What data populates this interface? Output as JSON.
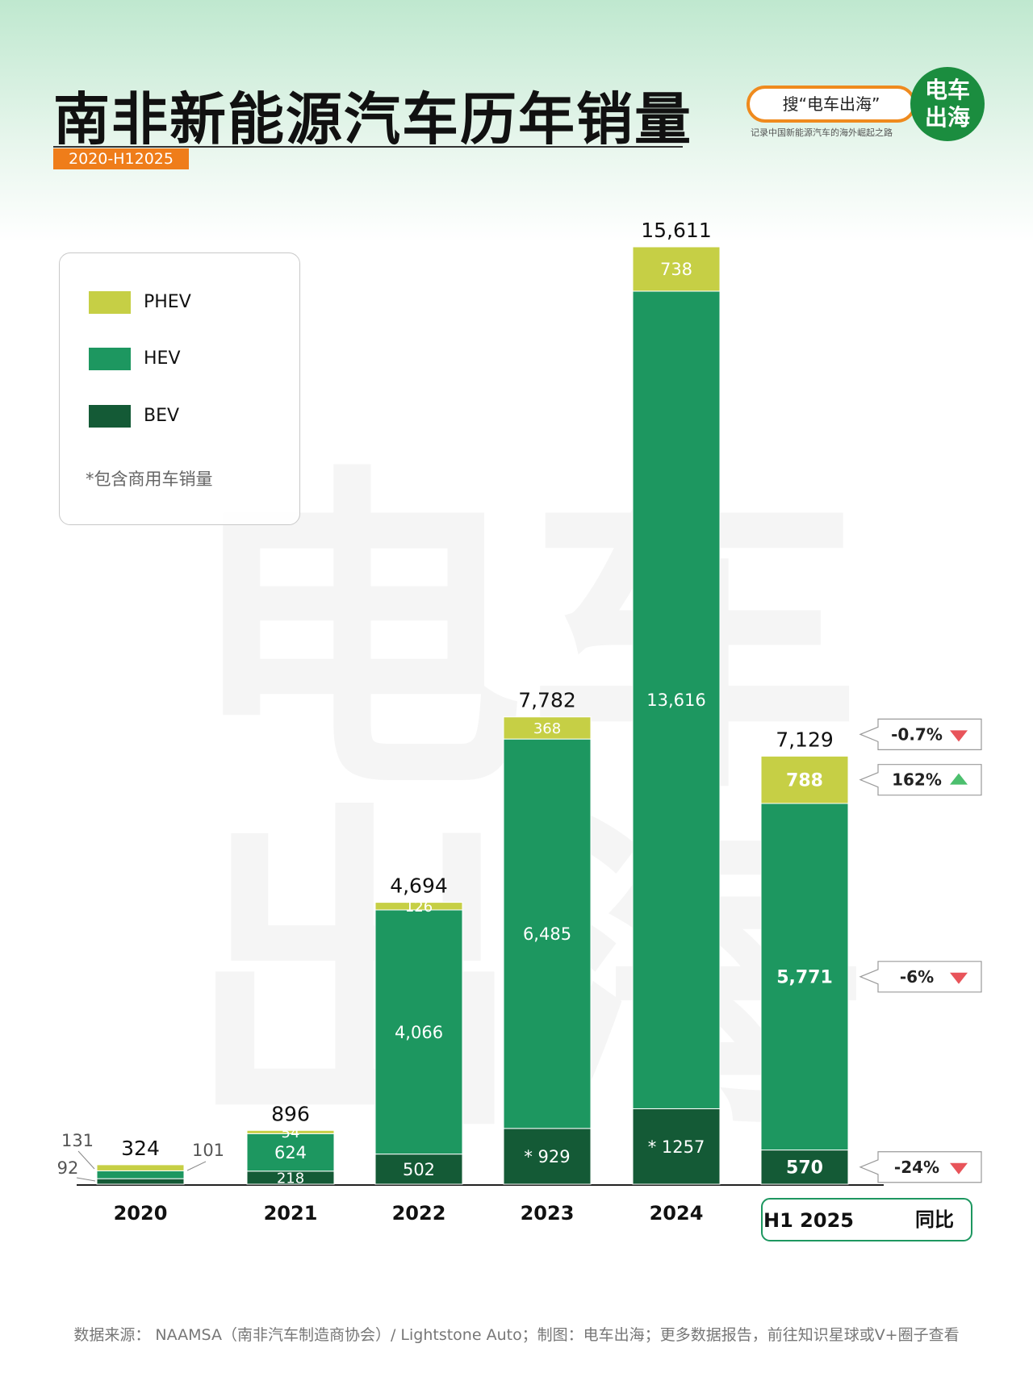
{
  "header": {
    "title": "南非新能源汽车历年销量",
    "subtitle": "2020-H12025",
    "brand_search": "搜“电车出海”",
    "brand_logo_line1": "电车",
    "brand_logo_line2": "出海",
    "brand_slogan": "记录中国新能源汽车的海外崛起之路"
  },
  "legend": {
    "items": [
      {
        "label": "PHEV",
        "color": "#c6cf45"
      },
      {
        "label": "HEV",
        "color": "#1d9760"
      },
      {
        "label": "BEV",
        "color": "#145a36"
      }
    ],
    "note": "*包含商用车销量"
  },
  "footer": {
    "source": "数据来源： NAAMSA（南非汽车制造商协会）/ Lightstone Auto；制图：电车出海；更多数据报告，前往知识星球或V+圈子查看"
  },
  "chart_data": {
    "type": "bar",
    "stacked": true,
    "categories": [
      "2020",
      "2021",
      "2022",
      "2023",
      "2024",
      "H1 2025"
    ],
    "series": [
      {
        "name": "BEV",
        "color": "#145a36",
        "values": [
          92,
          218,
          502,
          929,
          1257,
          570
        ],
        "labels": [
          "92",
          "218",
          "502",
          "* 929",
          "* 1257",
          "570"
        ]
      },
      {
        "name": "HEV",
        "color": "#1d9760",
        "values": [
          131,
          624,
          4066,
          6485,
          13616,
          5771
        ],
        "labels": [
          "131",
          "624",
          "4,066",
          "6,485",
          "13,616",
          "5,771"
        ]
      },
      {
        "name": "PHEV",
        "color": "#c6cf45",
        "values": [
          101,
          54,
          126,
          368,
          738,
          788
        ],
        "labels": [
          "101",
          "54",
          "126",
          "368",
          "738",
          "788"
        ]
      }
    ],
    "totals": [
      324,
      896,
      4694,
      7782,
      15611,
      7129
    ],
    "total_labels": [
      "324",
      "896",
      "4,694",
      "7,782",
      "15,611",
      "7,129"
    ],
    "ylim": [
      0,
      15611
    ],
    "yoy_header": "同比",
    "yoy_changes": [
      {
        "series": "Total",
        "value": "-0.7%",
        "direction": "down"
      },
      {
        "series": "PHEV",
        "value": "162%",
        "direction": "up"
      },
      {
        "series": "HEV",
        "value": "-6%",
        "direction": "down"
      },
      {
        "series": "BEV",
        "value": "-24%",
        "direction": "down"
      }
    ]
  }
}
